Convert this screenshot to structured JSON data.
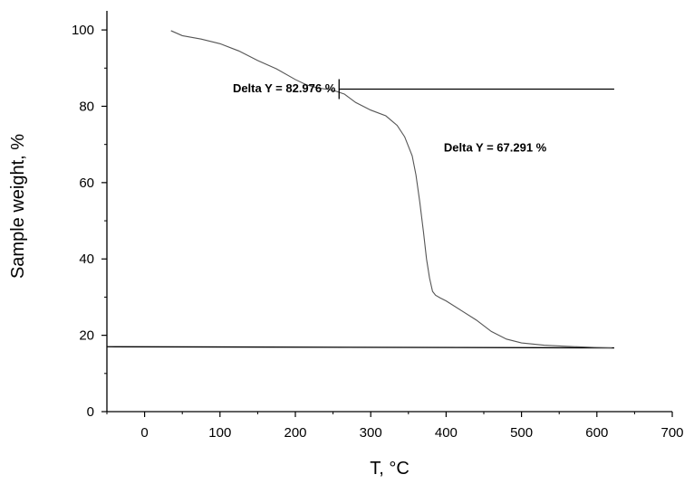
{
  "chart_data": {
    "type": "line",
    "xlabel": "T, °C",
    "ylabel": "Sample weight, %",
    "xlim": [
      -50,
      700
    ],
    "ylim": [
      0,
      105
    ],
    "xticks": [
      0,
      100,
      200,
      300,
      400,
      500,
      600,
      700
    ],
    "yticks": [
      0,
      20,
      40,
      60,
      80,
      100
    ],
    "grid": false,
    "series": [
      {
        "x": [
          35,
          50,
          75,
          100,
          125,
          150,
          175,
          200,
          215,
          230,
          250,
          265,
          280,
          300,
          320,
          335,
          345,
          355,
          360,
          365,
          370,
          374,
          378,
          382,
          386,
          392,
          400,
          420,
          440,
          460,
          480,
          500,
          530,
          560,
          600,
          620
        ],
        "y": [
          99.8,
          98.5,
          97.6,
          96.4,
          94.5,
          92.0,
          89.8,
          87.0,
          85.6,
          84.8,
          84.2,
          83.2,
          81.0,
          79.0,
          77.5,
          75.0,
          72.0,
          67.0,
          62.0,
          55.0,
          47.0,
          40.0,
          35.0,
          31.5,
          30.5,
          29.8,
          29.0,
          26.5,
          24.0,
          21.0,
          19.0,
          18.0,
          17.4,
          17.1,
          16.8,
          16.7
        ]
      }
    ],
    "reference_lines": [
      {
        "x": [
          258,
          623
        ],
        "y": [
          84.5,
          84.5
        ]
      },
      {
        "x": [
          -50,
          623
        ],
        "y": [
          17.0,
          16.7
        ]
      }
    ],
    "marker": {
      "x": 258,
      "y": 84.5
    },
    "annotations": [
      {
        "text": "Delta Y = 82.976 %",
        "x": 117,
        "y": 83.7
      },
      {
        "text": "Delta Y = 67.291 %",
        "x": 397,
        "y": 68.2
      }
    ]
  }
}
